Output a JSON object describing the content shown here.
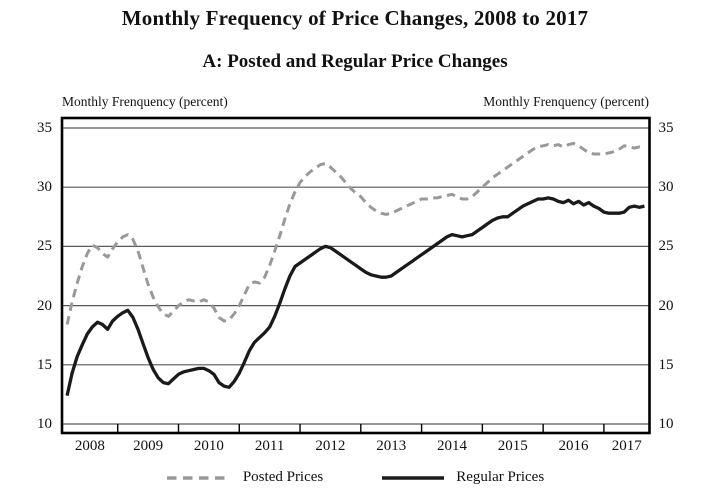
{
  "page": {
    "title": "Monthly Frequency of Price Changes, 2008 to 2017",
    "subtitle": "A: Posted and Regular Price Changes"
  },
  "axis": {
    "unit_label_left": "Monthly Frenquency (percent)",
    "unit_label_right": "Monthly Frenquency (percent)"
  },
  "legend": {
    "items": [
      {
        "label": "Posted Prices",
        "style": "dashed",
        "color": "#999999"
      },
      {
        "label": "Regular Prices",
        "style": "solid",
        "color": "#1a1a1a"
      }
    ]
  },
  "colors": {
    "frame": "#000000",
    "gridline": "#595959",
    "posted_line": "#999999",
    "regular_line": "#1a1a1a",
    "text": "#111111"
  },
  "chart_data": {
    "type": "line",
    "title": "Monthly Frequency of Price Changes, 2008 to 2017",
    "subtitle": "A: Posted and Regular Price Changes",
    "ylabel": "Monthly Frenquency (percent)",
    "xlabel": "",
    "x_unit": "month",
    "x_start": "2008-03",
    "x_end": "2017-09",
    "x_axis_range": [
      "2008-02",
      "2017-10"
    ],
    "x_tick_labels": [
      "2008",
      "2009",
      "2010",
      "2011",
      "2012",
      "2013",
      "2014",
      "2015",
      "2016",
      "2017"
    ],
    "y_ticks": [
      10,
      15,
      20,
      25,
      30,
      35
    ],
    "ylim": [
      9.2,
      35.8
    ],
    "grid": "horizontal",
    "legend_position": "bottom",
    "series": [
      {
        "name": "Posted Prices",
        "line": "dashed",
        "color": "#999999",
        "values": [
          18.4,
          20.3,
          21.9,
          23.3,
          24.4,
          25.1,
          24.9,
          24.4,
          24.1,
          24.8,
          25.4,
          25.8,
          26.0,
          25.6,
          24.6,
          23.2,
          21.8,
          20.7,
          19.9,
          19.3,
          19.1,
          19.5,
          20.0,
          20.3,
          20.5,
          20.4,
          20.3,
          20.5,
          20.3,
          19.8,
          19.0,
          18.7,
          18.8,
          19.3,
          20.0,
          20.9,
          21.8,
          22.0,
          21.9,
          22.4,
          23.4,
          24.6,
          25.9,
          27.3,
          28.6,
          29.6,
          30.4,
          30.9,
          31.3,
          31.6,
          31.9,
          32.0,
          31.7,
          31.3,
          30.9,
          30.4,
          29.9,
          29.5,
          29.2,
          28.7,
          28.3,
          28.0,
          27.8,
          27.7,
          27.8,
          28.0,
          28.2,
          28.4,
          28.6,
          28.8,
          29.0,
          29.0,
          29.1,
          29.1,
          29.2,
          29.3,
          29.4,
          29.2,
          29.0,
          29.0,
          29.2,
          29.6,
          30.0,
          30.4,
          30.8,
          31.1,
          31.4,
          31.7,
          32.0,
          32.3,
          32.6,
          32.9,
          33.2,
          33.4,
          33.5,
          33.6,
          33.5,
          33.6,
          33.4,
          33.6,
          33.7,
          33.5,
          33.2,
          32.9,
          32.8,
          32.8,
          32.8,
          32.9,
          33.0,
          33.2,
          33.5,
          33.4,
          33.3,
          33.4,
          33.3
        ]
      },
      {
        "name": "Regular Prices",
        "line": "solid",
        "color": "#1a1a1a",
        "values": [
          12.4,
          14.3,
          15.7,
          16.7,
          17.6,
          18.2,
          18.6,
          18.4,
          18.0,
          18.7,
          19.1,
          19.4,
          19.6,
          19.0,
          18.0,
          16.8,
          15.6,
          14.6,
          13.9,
          13.5,
          13.4,
          13.8,
          14.2,
          14.4,
          14.5,
          14.6,
          14.7,
          14.7,
          14.5,
          14.2,
          13.5,
          13.2,
          13.1,
          13.6,
          14.3,
          15.2,
          16.2,
          16.9,
          17.3,
          17.7,
          18.2,
          19.1,
          20.2,
          21.4,
          22.5,
          23.3,
          23.6,
          23.9,
          24.2,
          24.5,
          24.8,
          25.0,
          24.9,
          24.6,
          24.3,
          24.0,
          23.7,
          23.4,
          23.1,
          22.8,
          22.6,
          22.5,
          22.4,
          22.4,
          22.5,
          22.8,
          23.1,
          23.4,
          23.7,
          24.0,
          24.3,
          24.6,
          24.9,
          25.2,
          25.5,
          25.8,
          26.0,
          25.9,
          25.8,
          25.9,
          26.0,
          26.3,
          26.6,
          26.9,
          27.2,
          27.4,
          27.5,
          27.5,
          27.8,
          28.1,
          28.4,
          28.6,
          28.8,
          29.0,
          29.0,
          29.1,
          29.0,
          28.8,
          28.7,
          28.9,
          28.6,
          28.8,
          28.5,
          28.7,
          28.4,
          28.2,
          27.9,
          27.8,
          27.8,
          27.8,
          27.9,
          28.3,
          28.4,
          28.3,
          28.4
        ]
      }
    ]
  }
}
